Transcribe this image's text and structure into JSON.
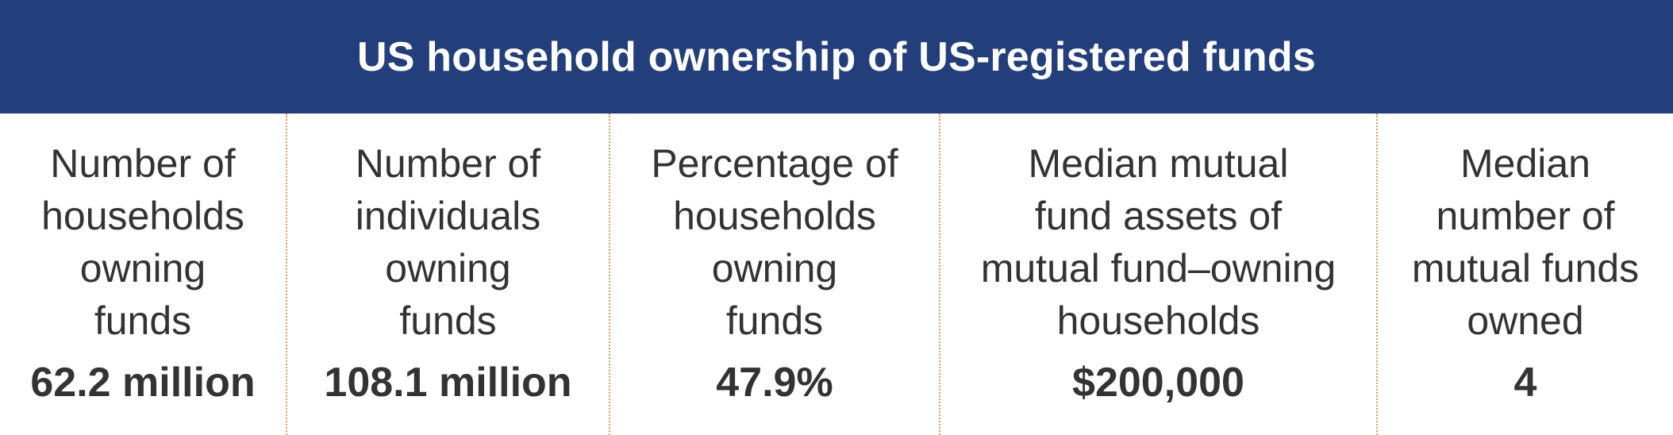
{
  "header": {
    "title": "US household ownership of US-registered funds"
  },
  "stats": [
    {
      "label": "Number of\nhouseholds\nowning\nfunds",
      "value": "62.2 million"
    },
    {
      "label": "Number of\nindividuals\nowning\nfunds",
      "value": "108.1 million"
    },
    {
      "label": "Percentage of\nhouseholds\nowning\nfunds",
      "value": "47.9%"
    },
    {
      "label": "Median mutual\nfund assets of\nmutual fund–owning\nhouseholds",
      "value": "$200,000"
    },
    {
      "label": "Median\nnumber of\nmutual funds\nowned",
      "value": "4"
    }
  ],
  "colors": {
    "header_background": "#233f7b",
    "header_text": "#ffffff",
    "body_text": "#333333",
    "divider": "#d8a15a"
  }
}
